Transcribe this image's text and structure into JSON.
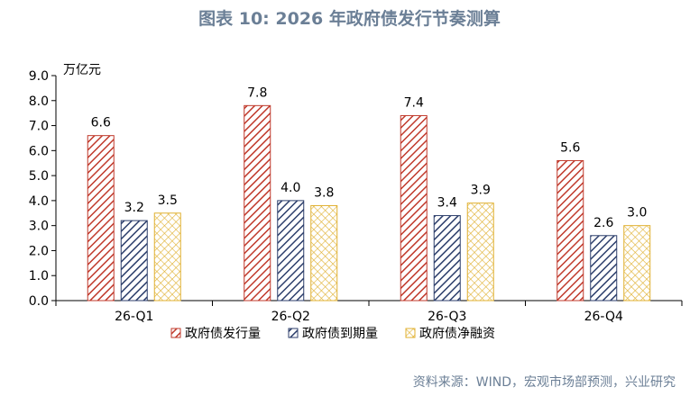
{
  "title": "图表 10: 2026 年政府债发行节奏测算",
  "source": "资料来源：WIND，宏观市场部预测，兴业研究",
  "chart_data": {
    "type": "bar",
    "categories": [
      "26-Q1",
      "26-Q2",
      "26-Q3",
      "26-Q4"
    ],
    "series": [
      {
        "name": "政府债发行量",
        "values": [
          6.6,
          7.8,
          7.4,
          5.6
        ],
        "color": "#c0392b",
        "pattern": "diagonal-red"
      },
      {
        "name": "政府债到期量",
        "values": [
          3.2,
          4.0,
          3.4,
          2.6
        ],
        "color": "#2c3e6b",
        "pattern": "diagonal-navy"
      },
      {
        "name": "政府债净融资",
        "values": [
          3.5,
          3.8,
          3.9,
          3.0
        ],
        "color": "#e0b030",
        "pattern": "crosshatch-gold"
      }
    ],
    "ylabel": "万亿元",
    "ylim": [
      0,
      9
    ],
    "yticks": [
      "0.0",
      "1.0",
      "2.0",
      "3.0",
      "4.0",
      "5.0",
      "6.0",
      "7.0",
      "8.0",
      "9.0"
    ],
    "grid": false,
    "legend": "bottom"
  }
}
